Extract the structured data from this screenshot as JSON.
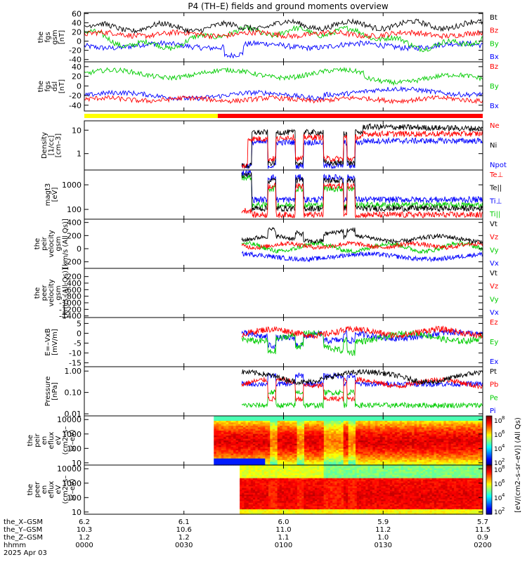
{
  "title": "P4 (TH–E) fields and ground moments overview",
  "colors": {
    "black": "#000000",
    "red": "#ff0000",
    "green": "#00cc00",
    "blue": "#0000ff",
    "yellow": "#ffff00"
  },
  "chart_data": {
    "type": "line",
    "x_time_ticks": [
      "0000",
      "0030",
      "0100",
      "0130",
      "0200"
    ],
    "x_range_hhmm": [
      "0000",
      "0200"
    ],
    "orbit_rows": [
      {
        "label": "the_X–GSM",
        "values": [
          "6.2",
          "6.1",
          "6.0",
          "5.9",
          "5.7"
        ]
      },
      {
        "label": "the_Y–GSM",
        "values": [
          "10.3",
          "10.6",
          "11.0",
          "11.2",
          "11.5"
        ]
      },
      {
        "label": "the_Z–GSM",
        "values": [
          "1.2",
          "1.2",
          "1.1",
          "1.0",
          "0.9"
        ]
      },
      {
        "label": "hhmm",
        "values": [
          "0000",
          "0030",
          "0100",
          "0130",
          "0200"
        ]
      }
    ],
    "date_label": "2025 Apr 03",
    "mode_bar": {
      "yellow_until_hhmm": "0039",
      "red_from_hhmm": "0039"
    },
    "panels": [
      {
        "id": "fgs-gsm",
        "ylabel": [
          "the",
          "fgs",
          "gsm",
          "[nT]"
        ],
        "ylim": [
          -45,
          62
        ],
        "ticks": [
          "60",
          "40",
          "20",
          "0",
          "-20",
          "-40"
        ],
        "series": [
          {
            "name": "Bt",
            "color": "#000000"
          },
          {
            "name": "Bz",
            "color": "#ff0000"
          },
          {
            "name": "By",
            "color": "#00cc00"
          },
          {
            "name": "Bx",
            "color": "#0000ff"
          }
        ]
      },
      {
        "id": "fgs-dsl",
        "ylabel": [
          "the",
          "fgs",
          "dsl",
          "[nT]"
        ],
        "ylim": [
          -52,
          50
        ],
        "ticks": [
          "40",
          "20",
          "0",
          "-20",
          "-40"
        ],
        "series": [
          {
            "name": "Bz",
            "color": "#ff0000"
          },
          {
            "name": "By",
            "color": "#00cc00"
          },
          {
            "name": "Bx",
            "color": "#0000ff"
          }
        ]
      },
      {
        "id": "density",
        "ylabel": [
          "Density",
          "[1/cc]",
          "[cm–3]"
        ],
        "scale": "log",
        "ylim": [
          0.2,
          25
        ],
        "ticks": [
          "10",
          "1"
        ],
        "series": [
          {
            "name": "Ne",
            "color": "#ff0000"
          },
          {
            "name": "Ni",
            "color": "#000000"
          },
          {
            "name": "Npot",
            "color": "#0000ff"
          }
        ]
      },
      {
        "id": "temperature",
        "ylabel": [
          "magt3",
          "[eV]"
        ],
        "scale": "log",
        "ylim": [
          40,
          4000
        ],
        "ticks": [
          "1000",
          "100"
        ],
        "series": [
          {
            "name": "Te⊥",
            "color": "#ff0000"
          },
          {
            "name": "Te||",
            "color": "#000000"
          },
          {
            "name": "Ti⊥",
            "color": "#0000ff"
          },
          {
            "name": "Ti||",
            "color": "#00cc00"
          }
        ]
      },
      {
        "id": "peir-velocity",
        "ylabel": [
          "the",
          "peir",
          "velocity",
          "gsm",
          "[km/s (All Qs)]"
        ],
        "ylim": [
          -300,
          450
        ],
        "ticks": [
          "400",
          "200",
          "0",
          "-200"
        ],
        "series": [
          {
            "name": "Vt",
            "color": "#000000"
          },
          {
            "name": "Vz",
            "color": "#ff0000"
          },
          {
            "name": "Vy",
            "color": "#00cc00"
          },
          {
            "name": "Vx",
            "color": "#0000ff"
          }
        ]
      },
      {
        "id": "peer-velocity",
        "ylabel": [
          "the",
          "peer",
          "velocity",
          "gsm",
          "[km/s (All Qs)]"
        ],
        "ylim": [
          -1450,
          50
        ],
        "ticks": [
          "-200",
          "-400",
          "-600",
          "-800",
          "-1000",
          "-1200",
          "-1400"
        ],
        "series": [
          {
            "name": "Vt",
            "color": "#000000"
          },
          {
            "name": "Vz",
            "color": "#ff0000"
          },
          {
            "name": "Vy",
            "color": "#00cc00"
          },
          {
            "name": "Vx",
            "color": "#0000ff"
          }
        ]
      },
      {
        "id": "efield",
        "ylabel": [
          "E=–VxB",
          "[mV/m]"
        ],
        "ylim": [
          -17,
          8
        ],
        "ticks": [
          "5",
          "0",
          "-5",
          "-10",
          "-15"
        ],
        "series": [
          {
            "name": "Ez",
            "color": "#ff0000"
          },
          {
            "name": "Ey",
            "color": "#00cc00"
          },
          {
            "name": "Ex",
            "color": "#0000ff"
          }
        ]
      },
      {
        "id": "pressure",
        "ylabel": [
          "Pressure",
          "[nPa]"
        ],
        "scale": "log",
        "ylim": [
          0.008,
          1.6
        ],
        "ticks": [
          "1.00",
          "0.10",
          "0.01"
        ],
        "series": [
          {
            "name": "Pt",
            "color": "#000000"
          },
          {
            "name": "Pb",
            "color": "#ff0000"
          },
          {
            "name": "Pe",
            "color": "#00cc00"
          },
          {
            "name": "Pi",
            "color": "#0000ff"
          }
        ]
      },
      {
        "id": "peir-spec",
        "ylabel": [
          "the",
          "peir",
          "en",
          "eflux",
          "eV",
          "(cm2–s–",
          "sr–eV)"
        ],
        "scale": "log",
        "ylim": [
          7,
          18000
        ],
        "ticks": [
          "10000",
          "1000",
          "100",
          "10"
        ],
        "type": "heatmap"
      },
      {
        "id": "peer-spec",
        "ylabel": [
          "the",
          "peer",
          "en",
          "eflux",
          "eV",
          "(cm2–s–",
          "sr–eV)"
        ],
        "scale": "log",
        "ylim": [
          7,
          18000
        ],
        "ticks": [
          "10000",
          "1000",
          "100",
          "10"
        ],
        "type": "heatmap"
      }
    ],
    "colorbar": {
      "label": "[eV/(cm2–s–sr–eV)] (All Qs)",
      "tick_mantissa": "10",
      "exponents": [
        "8",
        "6",
        "4",
        "2"
      ],
      "ticks2": [
        "8",
        "6",
        "4",
        "2"
      ]
    }
  }
}
